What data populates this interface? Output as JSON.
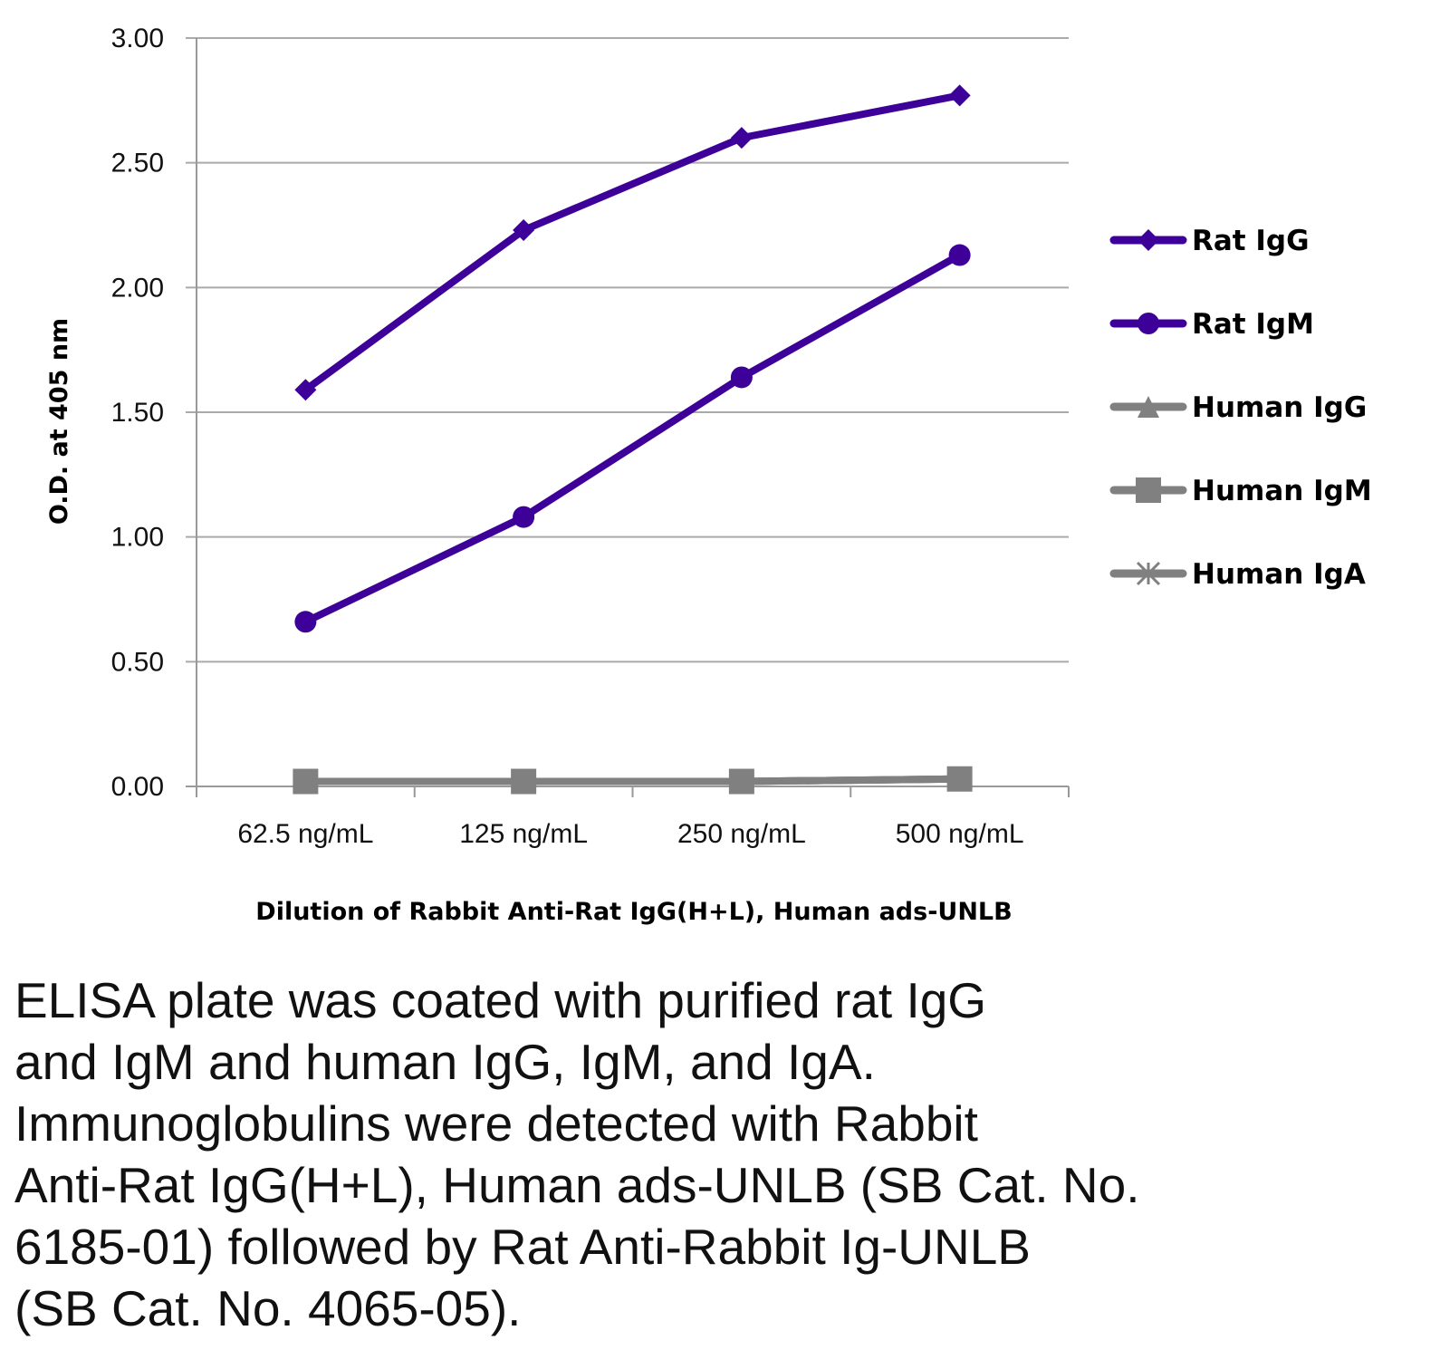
{
  "chart_data": {
    "type": "line",
    "title": "",
    "xlabel": "Dilution of Rabbit Anti-Rat IgG(H+L), Human ads-UNLB",
    "ylabel": "O.D. at 405 nm",
    "categories": [
      "62.5 ng/mL",
      "125 ng/mL",
      "250 ng/mL",
      "500 ng/mL"
    ],
    "ylim": [
      0,
      3
    ],
    "yticks": [
      "0.00",
      "0.50",
      "1.00",
      "1.50",
      "2.00",
      "2.50",
      "3.00"
    ],
    "grid": true,
    "legend_position": "right",
    "series": [
      {
        "name": "Rat IgG",
        "marker": "diamond",
        "color": "#3d0099",
        "values": [
          1.59,
          2.23,
          2.6,
          2.77
        ]
      },
      {
        "name": "Rat IgM",
        "marker": "circle",
        "color": "#3d0099",
        "values": [
          0.66,
          1.08,
          1.64,
          2.13
        ]
      },
      {
        "name": "Human IgG",
        "marker": "triangle",
        "color": "#808080",
        "values": [
          0.02,
          0.02,
          0.02,
          0.03
        ]
      },
      {
        "name": "Human IgM",
        "marker": "square",
        "color": "#808080",
        "values": [
          0.02,
          0.02,
          0.02,
          0.03
        ]
      },
      {
        "name": "Human IgA",
        "marker": "star",
        "color": "#808080",
        "values": [
          0.02,
          0.02,
          0.02,
          0.03
        ]
      }
    ]
  },
  "caption": "ELISA plate was coated with purified rat IgG\nand IgM and human IgG, IgM, and IgA.\nImmunoglobulins were detected with Rabbit\nAnti-Rat IgG(H+L), Human ads-UNLB (SB Cat. No.\n6185-01) followed by Rat Anti-Rabbit Ig-UNLB\n(SB Cat. No. 4065-05)."
}
